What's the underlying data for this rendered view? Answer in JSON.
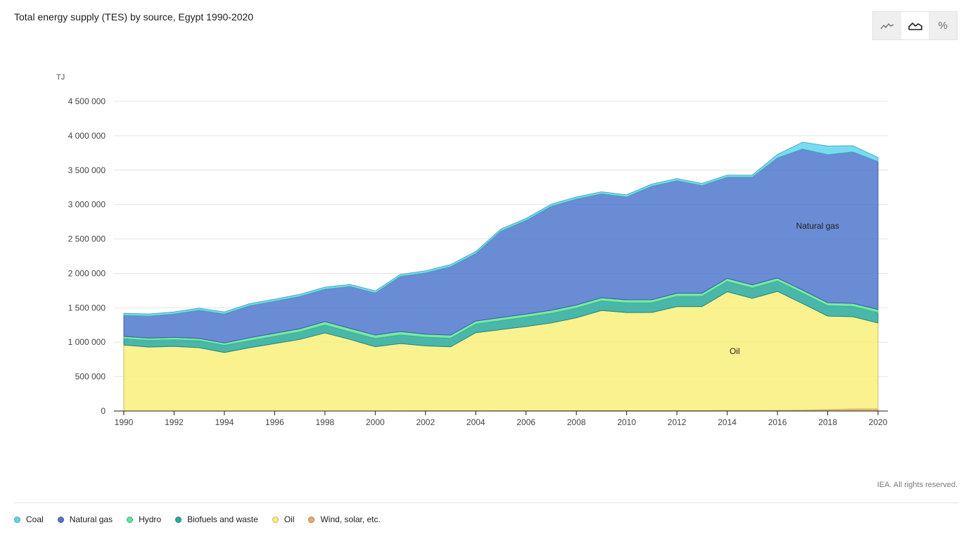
{
  "title": "Total energy supply (TES) by source, Egypt 1990-2020",
  "copyright": "IEA. All rights reserved.",
  "view_toggles": [
    {
      "name": "line-view",
      "icon": "line-chart-icon"
    },
    {
      "name": "area-view",
      "icon": "area-chart-icon",
      "active": true
    },
    {
      "name": "percent-view",
      "icon": "percent-icon",
      "label": "%"
    }
  ],
  "legend": [
    {
      "label": "Coal",
      "color": "#5fd6ec"
    },
    {
      "label": "Natural gas",
      "color": "#4f78cc"
    },
    {
      "label": "Hydro",
      "color": "#5ce69a"
    },
    {
      "label": "Biofuels and waste",
      "color": "#2aaa9c"
    },
    {
      "label": "Oil",
      "color": "#f9f07a"
    },
    {
      "label": "Wind, solar, etc.",
      "color": "#f0a966"
    }
  ],
  "chart_data": {
    "type": "area",
    "stacked": true,
    "title": "Total energy supply (TES) by source, Egypt 1990-2020",
    "unit": "TJ",
    "x": [
      1990,
      1991,
      1992,
      1993,
      1994,
      1995,
      1996,
      1997,
      1998,
      1999,
      2000,
      2001,
      2002,
      2003,
      2004,
      2005,
      2006,
      2007,
      2008,
      2009,
      2010,
      2011,
      2012,
      2013,
      2014,
      2015,
      2016,
      2017,
      2018,
      2019,
      2020
    ],
    "xticks": [
      "1990",
      "1992",
      "1994",
      "1996",
      "1998",
      "2000",
      "2002",
      "2004",
      "2006",
      "2008",
      "2010",
      "2012",
      "2014",
      "2016",
      "2018",
      "2020"
    ],
    "yticks": [
      "0",
      "500 000",
      "1 000 000",
      "1 500 000",
      "2 000 000",
      "2 500 000",
      "3 000 000",
      "3 500 000",
      "4 000 000",
      "4 500 000"
    ],
    "ylim": [
      0,
      4500000
    ],
    "series": [
      {
        "name": "Wind, solar, etc.",
        "color": "#f0a966",
        "values": [
          0,
          0,
          0,
          0,
          0,
          0,
          0,
          0,
          0,
          0,
          0,
          1000,
          2000,
          3000,
          3000,
          4000,
          4000,
          4000,
          5000,
          6000,
          6000,
          7000,
          7000,
          7000,
          8000,
          8000,
          9000,
          12000,
          20000,
          30000,
          30000
        ]
      },
      {
        "name": "Oil",
        "color": "#f9f07a",
        "values": [
          960000,
          930000,
          940000,
          920000,
          850000,
          920000,
          980000,
          1040000,
          1135000,
          1040000,
          935000,
          980000,
          945000,
          930000,
          1135000,
          1180000,
          1225000,
          1275000,
          1350000,
          1455000,
          1425000,
          1425000,
          1510000,
          1510000,
          1725000,
          1630000,
          1730000,
          1550000,
          1360000,
          1340000,
          1250000
        ]
      },
      {
        "name": "Biofuels and waste",
        "color": "#2aaa9c",
        "values": [
          90000,
          95000,
          95000,
          100000,
          105000,
          100000,
          105000,
          110000,
          115000,
          110000,
          120000,
          125000,
          125000,
          125000,
          125000,
          130000,
          135000,
          140000,
          140000,
          140000,
          140000,
          140000,
          150000,
          150000,
          150000,
          150000,
          150000,
          150000,
          150000,
          150000,
          150000
        ]
      },
      {
        "name": "Hydro",
        "color": "#5ce69a",
        "values": [
          35000,
          35000,
          35000,
          35000,
          35000,
          45000,
          45000,
          45000,
          50000,
          50000,
          50000,
          50000,
          45000,
          45000,
          45000,
          45000,
          45000,
          45000,
          45000,
          45000,
          45000,
          45000,
          45000,
          45000,
          45000,
          45000,
          45000,
          45000,
          45000,
          45000,
          45000
        ]
      },
      {
        "name": "Natural gas",
        "color": "#4f78cc",
        "values": [
          305000,
          320000,
          340000,
          410000,
          420000,
          465000,
          465000,
          470000,
          470000,
          610000,
          610000,
          800000,
          890000,
          995000,
          980000,
          1255000,
          1360000,
          1510000,
          1540000,
          1510000,
          1495000,
          1650000,
          1635000,
          1565000,
          1470000,
          1565000,
          1745000,
          2050000,
          2150000,
          2200000,
          2150000
        ]
      },
      {
        "name": "Coal",
        "color": "#5fd6ec",
        "values": [
          30000,
          30000,
          30000,
          30000,
          30000,
          30000,
          30000,
          30000,
          30000,
          30000,
          30000,
          30000,
          30000,
          30000,
          30000,
          30000,
          30000,
          30000,
          30000,
          30000,
          30000,
          30000,
          30000,
          30000,
          30000,
          30000,
          50000,
          100000,
          125000,
          90000,
          60000
        ]
      }
    ],
    "annotations": [
      {
        "text": "Natural gas",
        "x": 2017.6,
        "y": 2650000
      },
      {
        "text": "Oil",
        "x": 2014.3,
        "y": 830000
      }
    ]
  }
}
